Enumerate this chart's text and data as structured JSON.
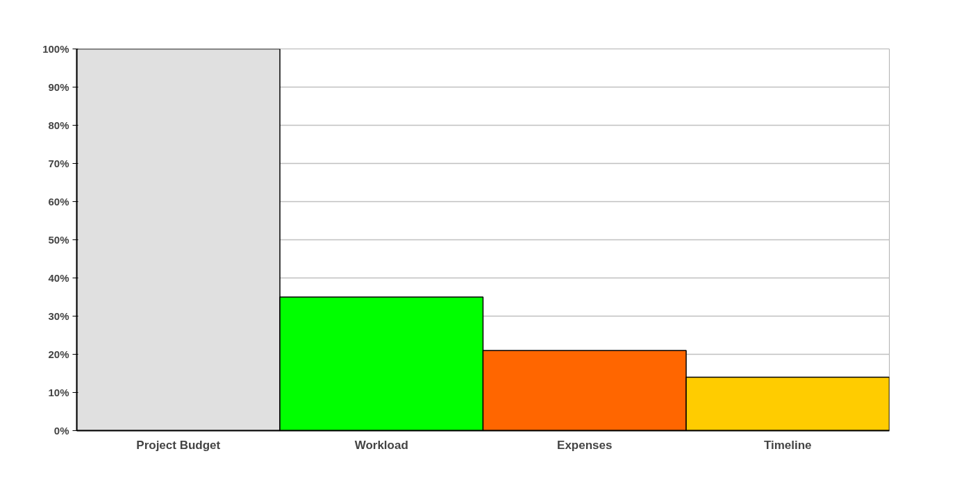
{
  "chart_data": {
    "type": "bar",
    "categories": [
      "Project Budget",
      "Workload",
      "Expenses",
      "Timeline"
    ],
    "values": [
      100,
      35,
      21,
      14
    ],
    "colors": [
      "#e0e0e0",
      "#00ff00",
      "#ff6600",
      "#ffcc00"
    ],
    "ylim": [
      0,
      100
    ],
    "yticks": [
      {
        "value": 0,
        "label": "0%"
      },
      {
        "value": 10,
        "label": "10%"
      },
      {
        "value": 20,
        "label": "20%"
      },
      {
        "value": 30,
        "label": "30%"
      },
      {
        "value": 40,
        "label": "40%"
      },
      {
        "value": 50,
        "label": "50%"
      },
      {
        "value": 60,
        "label": "60%"
      },
      {
        "value": 70,
        "label": "70%"
      },
      {
        "value": 80,
        "label": "80%"
      },
      {
        "value": 90,
        "label": "90%"
      },
      {
        "value": 100,
        "label": "100%"
      }
    ],
    "grid": "y"
  }
}
